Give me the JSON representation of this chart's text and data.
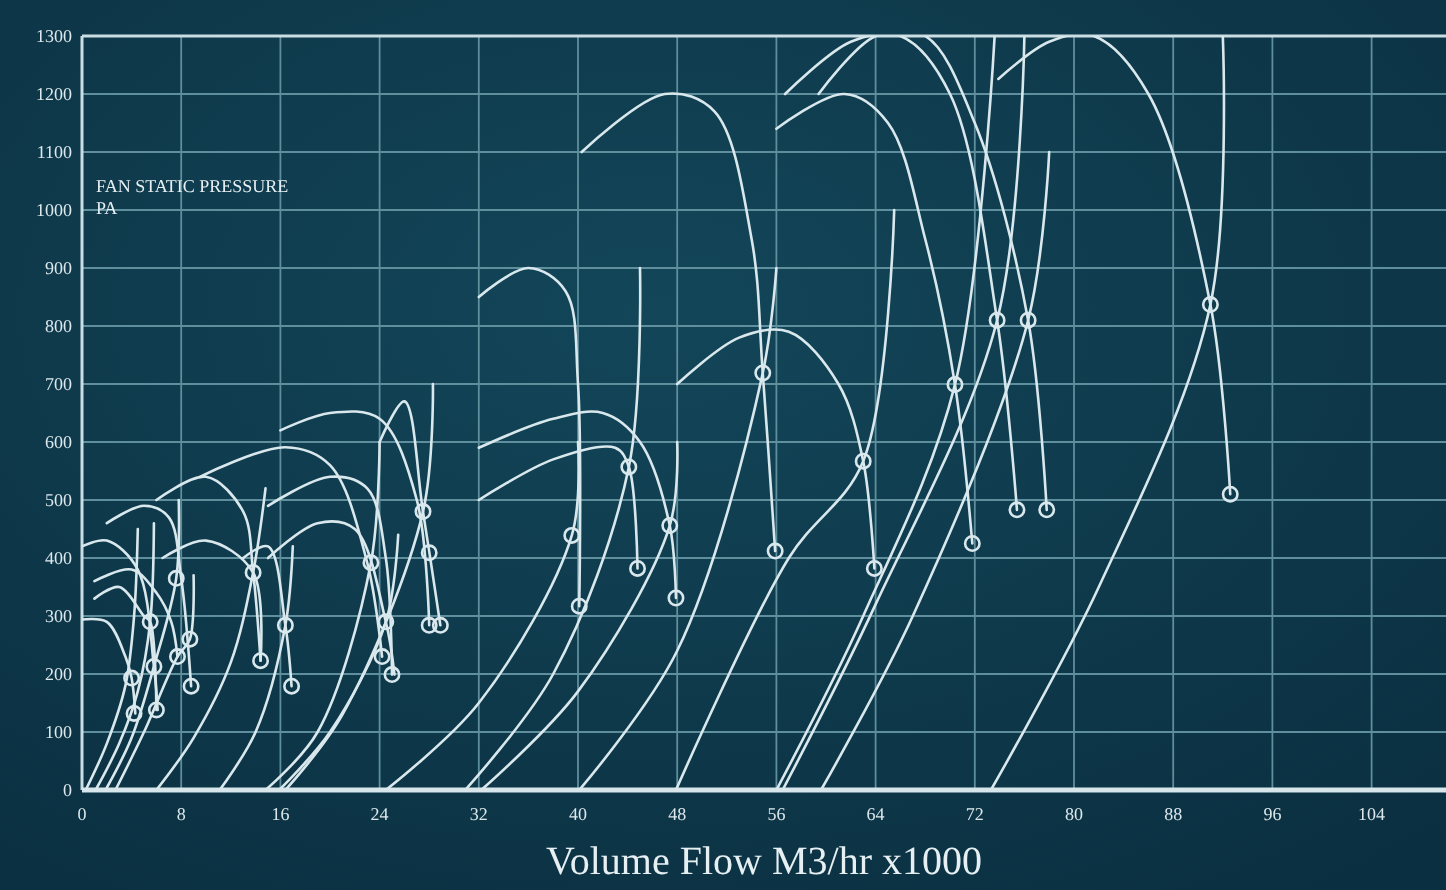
{
  "chart_data": {
    "type": "line",
    "xlabel": "Volume Flow M3/hr x1000",
    "ylabel": "FAN STATIC PRESSURE\nPA",
    "xlim": [
      0,
      110
    ],
    "ylim": [
      0,
      1300
    ],
    "xticks": [
      0,
      8,
      16,
      24,
      32,
      40,
      48,
      56,
      64,
      72,
      80,
      88,
      96,
      104
    ],
    "yticks": [
      0,
      100,
      200,
      300,
      400,
      500,
      600,
      700,
      800,
      900,
      1000,
      1100,
      1200,
      1300
    ],
    "grid": true,
    "series": [
      {
        "color": "#d9e8ed",
        "x": [
          0,
          2,
          3.5,
          4,
          4.3
        ],
        "values": [
          294,
          290,
          230,
          193,
          132
        ]
      },
      {
        "color": "#d9e8ed",
        "x": [
          1,
          3,
          5,
          5.5,
          6
        ],
        "values": [
          330,
          350,
          300,
          290,
          138
        ]
      },
      {
        "color": "#d9e8ed",
        "x": [
          1,
          4,
          6,
          7.2,
          7.7
        ],
        "values": [
          360,
          380,
          340,
          290,
          230
        ]
      },
      {
        "color": "#d9e8ed",
        "x": [
          0,
          2,
          4.5,
          5.8,
          6.1
        ],
        "values": [
          420,
          430,
          380,
          213,
          138
        ]
      },
      {
        "color": "#d9e8ed",
        "x": [
          2,
          5,
          7,
          8,
          8.8
        ],
        "values": [
          460,
          490,
          470,
          365,
          179
        ]
      },
      {
        "color": "#d9e8ed",
        "x": [
          6,
          10,
          13,
          13.8,
          14.4
        ],
        "values": [
          500,
          540,
          480,
          375,
          223
        ]
      },
      {
        "color": "#d9e8ed",
        "x": [
          9.5,
          16.4,
          20,
          23,
          24.2
        ],
        "values": [
          540,
          591,
          560,
          392,
          230
        ]
      },
      {
        "color": "#d9e8ed",
        "x": [
          6.5,
          10,
          13.8,
          14.4
        ],
        "values": [
          400,
          430,
          375,
          223
        ]
      },
      {
        "color": "#d9e8ed",
        "x": [
          13,
          15,
          16.4,
          16.9
        ],
        "values": [
          400,
          420,
          284,
          179
        ]
      },
      {
        "color": "#d9e8ed",
        "x": [
          15,
          20,
          23,
          24.5,
          25
        ],
        "values": [
          490,
          540,
          520,
          400,
          199
        ]
      },
      {
        "color": "#d9e8ed",
        "x": [
          15,
          19,
          22,
          24.5,
          25.2
        ],
        "values": [
          400,
          460,
          450,
          290,
          199
        ]
      },
      {
        "color": "#d9e8ed",
        "x": [
          16,
          20,
          24,
          27,
          28
        ],
        "values": [
          620,
          650,
          640,
          500,
          284
        ]
      },
      {
        "color": "#d9e8ed",
        "x": [
          24,
          26,
          27.5,
          28.9
        ],
        "values": [
          600,
          670,
          480,
          284
        ]
      },
      {
        "color": "#d9e8ed",
        "x": [
          32,
          36,
          39,
          40,
          40.1
        ],
        "values": [
          850,
          900,
          860,
          700,
          317
        ]
      },
      {
        "color": "#d9e8ed",
        "x": [
          32,
          38,
          43,
          44.1,
          44.8
        ],
        "values": [
          500,
          570,
          590,
          557,
          382
        ]
      },
      {
        "color": "#d9e8ed",
        "x": [
          32,
          38,
          42,
          45,
          47.4,
          47.9
        ],
        "values": [
          590,
          640,
          650,
          600,
          456,
          331
        ]
      },
      {
        "color": "#d9e8ed",
        "x": [
          40.3,
          47,
          51,
          54,
          54.9,
          55.9
        ],
        "values": [
          1100,
          1200,
          1170,
          950,
          719,
          412
        ]
      },
      {
        "color": "#d9e8ed",
        "x": [
          48,
          53,
          57,
          61,
          63,
          63.9
        ],
        "values": [
          700,
          780,
          790,
          700,
          567,
          382
        ]
      },
      {
        "color": "#d9e8ed",
        "x": [
          56,
          61.5,
          65,
          68,
          70.4,
          71.8
        ],
        "values": [
          1140,
          1200,
          1150,
          950,
          699,
          425
        ]
      },
      {
        "color": "#d9e8ed",
        "x": [
          56.7,
          62,
          66,
          70,
          73.8,
          75.4
        ],
        "values": [
          1200,
          1290,
          1300,
          1200,
          810,
          483
        ]
      },
      {
        "color": "#d9e8ed",
        "x": [
          59.4,
          64,
          68,
          72,
          76.3,
          77.8
        ],
        "values": [
          1200,
          1300,
          1300,
          1150,
          810,
          483
        ]
      },
      {
        "color": "#d9e8ed",
        "x": [
          73.9,
          78,
          81.6,
          86,
          91,
          92.6
        ],
        "values": [
          1226,
          1290,
          1300,
          1200,
          837,
          510
        ]
      },
      {
        "color": "#d9e8ed",
        "x": [
          0.3,
          2,
          3.5,
          4.2,
          4.5
        ],
        "values": [
          0,
          80,
          180,
          300,
          450
        ]
      },
      {
        "color": "#d9e8ed",
        "x": [
          1.1,
          3,
          4.5,
          5.5,
          5.8
        ],
        "values": [
          0,
          80,
          170,
          290,
          460
        ]
      },
      {
        "color": "#d9e8ed",
        "x": [
          1.9,
          4,
          5.8,
          7.6,
          7.8
        ],
        "values": [
          0,
          90,
          213,
          365,
          500
        ]
      },
      {
        "color": "#d9e8ed",
        "x": [
          2.7,
          5,
          7.7,
          8.7,
          9
        ],
        "values": [
          0,
          100,
          230,
          260,
          370
        ]
      },
      {
        "color": "#d9e8ed",
        "x": [
          6,
          9,
          12,
          13.8,
          14.8
        ],
        "values": [
          0,
          90,
          220,
          375,
          520
        ]
      },
      {
        "color": "#d9e8ed",
        "x": [
          11.1,
          14,
          16.4,
          17
        ],
        "values": [
          0,
          100,
          284,
          420
        ]
      },
      {
        "color": "#d9e8ed",
        "x": [
          14.8,
          19,
          23.3,
          24
        ],
        "values": [
          0,
          100,
          392,
          600
        ]
      },
      {
        "color": "#d9e8ed",
        "x": [
          15.9,
          20,
          24.5,
          25.5
        ],
        "values": [
          0,
          100,
          290,
          440
        ]
      },
      {
        "color": "#d9e8ed",
        "x": [
          16.4,
          21,
          27.5,
          28.3
        ],
        "values": [
          0,
          130,
          480,
          700
        ]
      },
      {
        "color": "#d9e8ed",
        "x": [
          24.5,
          32,
          39.5,
          40
        ],
        "values": [
          0,
          150,
          439,
          600
        ]
      },
      {
        "color": "#d9e8ed",
        "x": [
          30.9,
          38,
          44.1,
          45
        ],
        "values": [
          0,
          200,
          557,
          900
        ]
      },
      {
        "color": "#d9e8ed",
        "x": [
          32.2,
          40,
          47.4,
          48
        ],
        "values": [
          0,
          170,
          456,
          600
        ]
      },
      {
        "color": "#d9e8ed",
        "x": [
          40.1,
          48,
          54.9,
          56
        ],
        "values": [
          0,
          240,
          719,
          900
        ]
      },
      {
        "color": "#d9e8ed",
        "x": [
          47.9,
          57,
          63,
          65.5
        ],
        "values": [
          0,
          400,
          567,
          1000
        ]
      },
      {
        "color": "#d9e8ed",
        "x": [
          56,
          63,
          70.4,
          73.6
        ],
        "values": [
          0,
          300,
          699,
          1300
        ]
      },
      {
        "color": "#d9e8ed",
        "x": [
          56.5,
          64,
          73.8,
          76
        ],
        "values": [
          0,
          320,
          810,
          1300
        ]
      },
      {
        "color": "#d9e8ed",
        "x": [
          59.6,
          67,
          76.3,
          78
        ],
        "values": [
          0,
          300,
          810,
          1100
        ]
      },
      {
        "color": "#d9e8ed",
        "x": [
          73.3,
          82,
          91,
          92
        ],
        "values": [
          0,
          350,
          837,
          1300
        ]
      },
      {
        "type": "scatter",
        "marker": "circle",
        "color": "#d9e8ed",
        "x": [
          4.0,
          4.2,
          5.5,
          5.8,
          6.0,
          7.6,
          7.7,
          8.7,
          8.8,
          13.8,
          14.4,
          16.4,
          16.9,
          23.3,
          24.5,
          24.2,
          25.0,
          27.5,
          28.0,
          28.0,
          28.9,
          39.5,
          40.1,
          44.1,
          44.8,
          47.4,
          47.9,
          55.9,
          63.0,
          63.9,
          71.8,
          75.4,
          77.8,
          92.6,
          54.9,
          70.4,
          73.8,
          76.3,
          91.0
        ],
        "values": [
          193,
          132,
          290,
          213,
          138,
          365,
          230,
          260,
          179,
          375,
          223,
          284,
          179,
          392,
          290,
          230,
          199,
          480,
          409,
          284,
          284,
          439,
          317,
          557,
          382,
          456,
          331,
          412,
          567,
          382,
          425,
          483,
          483,
          510,
          719,
          699,
          810,
          810,
          837
        ]
      }
    ]
  }
}
